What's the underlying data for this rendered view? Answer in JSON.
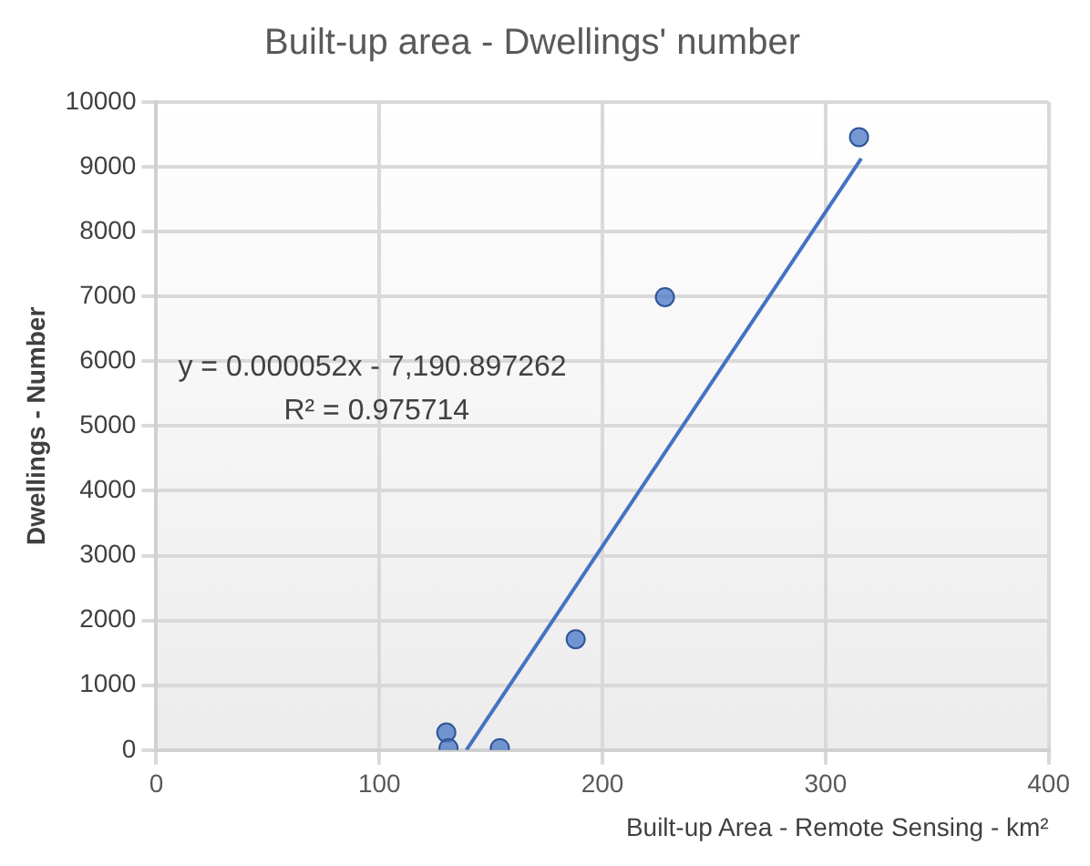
{
  "chart_data": {
    "type": "scatter",
    "title": "Built-up area - Dwellings' number",
    "xlabel": "Built-up Area - Remote Sensing - km²",
    "ylabel": "Dwellings - Number",
    "annotations": [
      "y = 0.000052x - 7,190.897262",
      "R² = 0.975714"
    ],
    "xlim": [
      0,
      400
    ],
    "xticks": [
      0,
      100,
      200,
      300,
      400
    ],
    "ylim": [
      0,
      10000
    ],
    "yticks": [
      0,
      1000,
      2000,
      3000,
      4000,
      5000,
      6000,
      7000,
      8000,
      9000,
      10000
    ],
    "grid": true,
    "legend": false,
    "series": [
      {
        "color": "#4472c4",
        "marker": "circle",
        "x": [
          130,
          131,
          154,
          188,
          228,
          315
        ],
        "values": [
          270,
          30,
          30,
          1710,
          6990,
          9460
        ]
      },
      {
        "type": "line",
        "color": "#4472c4",
        "marker": "none",
        "line_style": "solid",
        "x": [
          139,
          316
        ],
        "values": [
          0,
          9130
        ]
      }
    ]
  }
}
